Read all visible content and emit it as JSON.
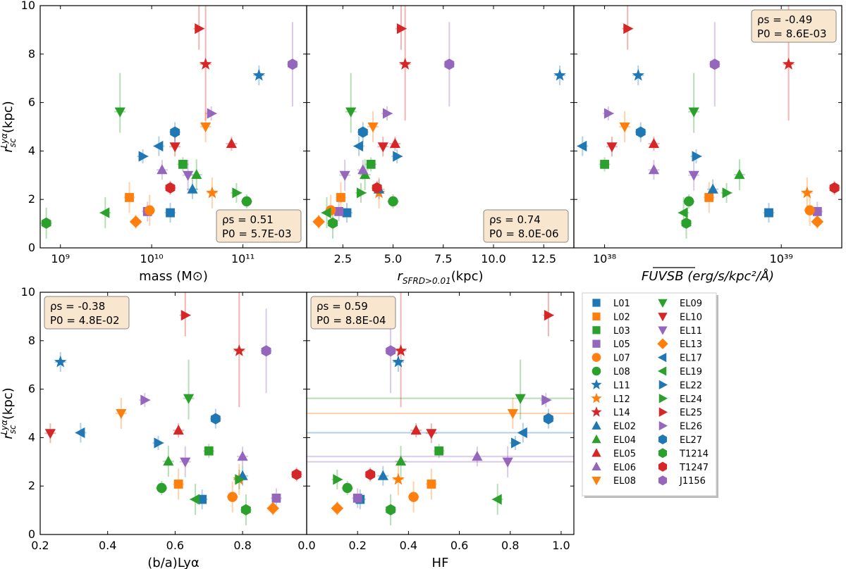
{
  "colors": {
    "blue": "#1f77b4",
    "orange": "#ff7f0e",
    "green": "#2ca02c",
    "red": "#d62728",
    "purple": "#9467bd",
    "statbox": "#f8e6cf"
  },
  "legend": [
    {
      "label": "L01",
      "color": "blue",
      "marker": "square"
    },
    {
      "label": "L02",
      "color": "orange",
      "marker": "square"
    },
    {
      "label": "L03",
      "color": "green",
      "marker": "square"
    },
    {
      "label": "L05",
      "color": "purple",
      "marker": "square"
    },
    {
      "label": "L07",
      "color": "orange",
      "marker": "circle"
    },
    {
      "label": "L08",
      "color": "green",
      "marker": "circle"
    },
    {
      "label": "L11",
      "color": "blue",
      "marker": "star"
    },
    {
      "label": "L12",
      "color": "orange",
      "marker": "star"
    },
    {
      "label": "L14",
      "color": "red",
      "marker": "star"
    },
    {
      "label": "EL02",
      "color": "blue",
      "marker": "tri-up"
    },
    {
      "label": "EL04",
      "color": "green",
      "marker": "tri-up"
    },
    {
      "label": "EL05",
      "color": "red",
      "marker": "tri-up"
    },
    {
      "label": "EL06",
      "color": "purple",
      "marker": "tri-up"
    },
    {
      "label": "EL08",
      "color": "orange",
      "marker": "tri-down"
    },
    {
      "label": "EL09",
      "color": "green",
      "marker": "tri-down"
    },
    {
      "label": "EL10",
      "color": "red",
      "marker": "tri-down"
    },
    {
      "label": "EL11",
      "color": "purple",
      "marker": "tri-down"
    },
    {
      "label": "EL13",
      "color": "orange",
      "marker": "diamond"
    },
    {
      "label": "EL17",
      "color": "blue",
      "marker": "tri-left"
    },
    {
      "label": "EL19",
      "color": "green",
      "marker": "tri-left"
    },
    {
      "label": "EL22",
      "color": "blue",
      "marker": "tri-right"
    },
    {
      "label": "EL24",
      "color": "green",
      "marker": "tri-right"
    },
    {
      "label": "EL25",
      "color": "red",
      "marker": "tri-right"
    },
    {
      "label": "EL26",
      "color": "purple",
      "marker": "tri-right"
    },
    {
      "label": "EL27",
      "color": "blue",
      "marker": "hexagon"
    },
    {
      "label": "T1214",
      "color": "green",
      "marker": "hexagon"
    },
    {
      "label": "T1247",
      "color": "red",
      "marker": "hexagon"
    },
    {
      "label": "J1156",
      "color": "purple",
      "marker": "hexagon"
    }
  ],
  "chart_data": [
    {
      "type": "scatter",
      "id": "p1",
      "xscale": "log",
      "xlabel": "mass (M⊙)",
      "ylabel": "r_sc^Lyα (kpc)",
      "xlim": [
        600000000.0,
        500000000000.0
      ],
      "ylim": [
        0,
        10
      ],
      "xticks": [
        {
          "v": 1000000000.0,
          "label": "10⁹"
        },
        {
          "v": 10000000000.0,
          "label": "10¹⁰"
        },
        {
          "v": 100000000000.0,
          "label": "10¹¹"
        }
      ],
      "yticks": [
        0,
        2,
        4,
        6,
        8,
        10
      ],
      "stats": {
        "rho_label": "ρs = 0.51",
        "p_label": "P0 = 5.7E-03",
        "position": "bottom-right"
      },
      "points": [
        {
          "label": "L01",
          "x": 16000000000.0,
          "y": 1.45
        },
        {
          "label": "L02",
          "x": 5700000000.0,
          "y": 2.08
        },
        {
          "label": "L03",
          "x": 22000000000.0,
          "y": 3.45
        },
        {
          "label": "L05",
          "x": 9000000000.0,
          "y": 1.5
        },
        {
          "label": "L07",
          "x": 9500000000.0,
          "y": 1.55
        },
        {
          "label": "L08",
          "x": 110000000000.0,
          "y": 1.92
        },
        {
          "label": "L11",
          "x": 150000000000.0,
          "y": 7.12
        },
        {
          "label": "L12",
          "x": 46000000000.0,
          "y": 2.27
        },
        {
          "label": "L14",
          "x": 39000000000.0,
          "y": 7.58
        },
        {
          "label": "EL02",
          "x": 28000000000.0,
          "y": 2.42
        },
        {
          "label": "EL04",
          "x": 31000000000.0,
          "y": 3.02
        },
        {
          "label": "EL05",
          "x": 75000000000.0,
          "y": 4.3
        },
        {
          "label": "EL06",
          "x": 13000000000.0,
          "y": 3.22
        },
        {
          "label": "EL08",
          "x": 39000000000.0,
          "y": 5.0
        },
        {
          "label": "EL09",
          "x": 4500000000.0,
          "y": 5.62
        },
        {
          "label": "EL10",
          "x": 18000000000.0,
          "y": 4.18
        },
        {
          "label": "EL11",
          "x": 25000000000.0,
          "y": 3.0
        },
        {
          "label": "EL13",
          "x": 6700000000.0,
          "y": 1.08
        },
        {
          "label": "EL17",
          "x": 12000000000.0,
          "y": 4.2
        },
        {
          "label": "EL19",
          "x": 3100000000.0,
          "y": 1.45
        },
        {
          "label": "EL22",
          "x": 8000000000.0,
          "y": 3.78
        },
        {
          "label": "EL24",
          "x": 85000000000.0,
          "y": 2.27
        },
        {
          "label": "EL25",
          "x": 33000000000.0,
          "y": 9.05
        },
        {
          "label": "EL26",
          "x": 45000000000.0,
          "y": 5.55
        },
        {
          "label": "EL27",
          "x": 18000000000.0,
          "y": 4.78
        },
        {
          "label": "T1214",
          "x": 700000000.0,
          "y": 1.02
        },
        {
          "label": "T1247",
          "x": 16000000000.0,
          "y": 2.48
        },
        {
          "label": "J1156",
          "x": 350000000000.0,
          "y": 7.58
        }
      ]
    },
    {
      "type": "scatter",
      "id": "p2",
      "xscale": "linear",
      "xlabel": "r_SFRD>0.01 (kpc)",
      "ylabel": "",
      "xlim": [
        0.7,
        14.0
      ],
      "ylim": [
        0,
        10
      ],
      "xticks": [
        {
          "v": 2.5,
          "label": "2.5"
        },
        {
          "v": 5.0,
          "label": "5.0"
        },
        {
          "v": 7.5,
          "label": "7.5"
        },
        {
          "v": 10.0,
          "label": "10.0"
        },
        {
          "v": 12.5,
          "label": "12.5"
        }
      ],
      "yticks": [
        0,
        2,
        4,
        6,
        8,
        10
      ],
      "stats": {
        "rho_label": "ρs = 0.74",
        "p_label": "P0 = 8.0E-06",
        "position": "bottom-right"
      },
      "points": [
        {
          "label": "L01",
          "x": 2.7,
          "y": 1.45
        },
        {
          "label": "L02",
          "x": 2.4,
          "y": 2.08
        },
        {
          "label": "L03",
          "x": 3.9,
          "y": 3.45
        },
        {
          "label": "L05",
          "x": 2.3,
          "y": 1.5
        },
        {
          "label": "L07",
          "x": 1.9,
          "y": 1.55
        },
        {
          "label": "L08",
          "x": 5.0,
          "y": 1.92
        },
        {
          "label": "L11",
          "x": 13.3,
          "y": 7.12
        },
        {
          "label": "L12",
          "x": 4.3,
          "y": 2.27
        },
        {
          "label": "L14",
          "x": 5.6,
          "y": 7.58
        },
        {
          "label": "EL02",
          "x": 4.3,
          "y": 2.42
        },
        {
          "label": "EL04",
          "x": 3.6,
          "y": 3.02
        },
        {
          "label": "EL05",
          "x": 5.1,
          "y": 4.3
        },
        {
          "label": "EL06",
          "x": 3.5,
          "y": 3.22
        },
        {
          "label": "EL08",
          "x": 4.0,
          "y": 5.0
        },
        {
          "label": "EL09",
          "x": 2.9,
          "y": 5.62
        },
        {
          "label": "EL10",
          "x": 4.5,
          "y": 4.18
        },
        {
          "label": "EL11",
          "x": 2.6,
          "y": 3.0
        },
        {
          "label": "EL13",
          "x": 1.3,
          "y": 1.08
        },
        {
          "label": "EL17",
          "x": 3.3,
          "y": 4.2
        },
        {
          "label": "EL19",
          "x": 1.7,
          "y": 1.45
        },
        {
          "label": "EL22",
          "x": 5.2,
          "y": 3.78
        },
        {
          "label": "EL24",
          "x": 3.4,
          "y": 2.27
        },
        {
          "label": "EL25",
          "x": 5.4,
          "y": 9.05
        },
        {
          "label": "EL26",
          "x": 4.7,
          "y": 5.55
        },
        {
          "label": "EL27",
          "x": 3.5,
          "y": 4.78
        },
        {
          "label": "T1214",
          "x": 2.0,
          "y": 1.02
        },
        {
          "label": "T1247",
          "x": 4.2,
          "y": 2.48
        },
        {
          "label": "J1156",
          "x": 7.8,
          "y": 7.58
        }
      ]
    },
    {
      "type": "scatter",
      "id": "p3",
      "xscale": "log",
      "xlabel": "FUV_SB (erg/s/kpc²/Å)",
      "ylabel": "",
      "xlim": [
        6.7e+37,
        2.2e+39
      ],
      "ylim": [
        0,
        10
      ],
      "xticks": [
        {
          "v": 1e+38,
          "label": "10³⁸"
        },
        {
          "v": 1e+39,
          "label": "10³⁹"
        }
      ],
      "yticks": [
        0,
        2,
        4,
        6,
        8,
        10
      ],
      "stats": {
        "rho_label": "ρs = -0.49",
        "p_label": "P0 = 8.6E-03",
        "position": "top-right"
      },
      "points": [
        {
          "label": "L01",
          "x": 8.5e+38,
          "y": 1.45
        },
        {
          "label": "L02",
          "x": 3.9e+38,
          "y": 2.08
        },
        {
          "label": "L03",
          "x": 1e+38,
          "y": 3.45
        },
        {
          "label": "L05",
          "x": 1.6e+39,
          "y": 1.5
        },
        {
          "label": "L07",
          "x": 1.45e+39,
          "y": 1.55
        },
        {
          "label": "L08",
          "x": 3e+38,
          "y": 1.92
        },
        {
          "label": "L11",
          "x": 1.55e+38,
          "y": 7.12
        },
        {
          "label": "L12",
          "x": 1.4e+39,
          "y": 2.27
        },
        {
          "label": "L14",
          "x": 1.1e+39,
          "y": 7.58
        },
        {
          "label": "EL02",
          "x": 4.1e+38,
          "y": 2.42
        },
        {
          "label": "EL04",
          "x": 5.8e+38,
          "y": 3.02
        },
        {
          "label": "EL05",
          "x": 1.9e+38,
          "y": 4.3
        },
        {
          "label": "EL06",
          "x": 1.9e+38,
          "y": 3.22
        },
        {
          "label": "EL08",
          "x": 1.3e+38,
          "y": 5.0
        },
        {
          "label": "EL09",
          "x": 3.2e+38,
          "y": 5.62
        },
        {
          "label": "EL10",
          "x": 1.1e+38,
          "y": 4.18
        },
        {
          "label": "EL11",
          "x": 3.2e+38,
          "y": 3.0
        },
        {
          "label": "EL13",
          "x": 1.6e+39,
          "y": 1.08
        },
        {
          "label": "EL17",
          "x": 7.5e+37,
          "y": 4.2
        },
        {
          "label": "EL19",
          "x": 2.8e+38,
          "y": 1.45
        },
        {
          "label": "EL22",
          "x": 3.3e+38,
          "y": 3.78
        },
        {
          "label": "EL24",
          "x": 4.9e+38,
          "y": 2.27
        },
        {
          "label": "EL25",
          "x": 1.35e+38,
          "y": 9.05
        },
        {
          "label": "EL26",
          "x": 1.05e+38,
          "y": 5.55
        },
        {
          "label": "EL27",
          "x": 1.6e+38,
          "y": 4.78
        },
        {
          "label": "T1214",
          "x": 2.9e+38,
          "y": 1.02
        },
        {
          "label": "T1247",
          "x": 2e+39,
          "y": 2.48
        },
        {
          "label": "J1156",
          "x": 4.2e+38,
          "y": 7.58
        }
      ]
    },
    {
      "type": "scatter",
      "id": "p4",
      "xscale": "linear",
      "xlabel": "(b/a)Lyα",
      "ylabel": "r_sc^Lyα (kpc)",
      "xlim": [
        0.2,
        0.99
      ],
      "ylim": [
        0,
        10
      ],
      "xticks": [
        {
          "v": 0.2,
          "label": "0.2"
        },
        {
          "v": 0.4,
          "label": "0.4"
        },
        {
          "v": 0.6,
          "label": "0.6"
        },
        {
          "v": 0.8,
          "label": "0.8"
        }
      ],
      "yticks": [
        0,
        2,
        4,
        6,
        8,
        10
      ],
      "stats": {
        "rho_label": "ρs = -0.38",
        "p_label": "P0 = 4.8E-02",
        "position": "top-left"
      },
      "points": [
        {
          "label": "L01",
          "x": 0.68,
          "y": 1.45
        },
        {
          "label": "L02",
          "x": 0.61,
          "y": 2.08
        },
        {
          "label": "L03",
          "x": 0.7,
          "y": 3.45
        },
        {
          "label": "L05",
          "x": 0.9,
          "y": 1.5
        },
        {
          "label": "L07",
          "x": 0.77,
          "y": 1.55
        },
        {
          "label": "L08",
          "x": 0.56,
          "y": 1.92
        },
        {
          "label": "L11",
          "x": 0.26,
          "y": 7.12
        },
        {
          "label": "L12",
          "x": 0.79,
          "y": 2.27
        },
        {
          "label": "L14",
          "x": 0.79,
          "y": 7.58
        },
        {
          "label": "EL02",
          "x": 0.8,
          "y": 2.42
        },
        {
          "label": "EL04",
          "x": 0.58,
          "y": 3.02
        },
        {
          "label": "EL05",
          "x": 0.61,
          "y": 4.3
        },
        {
          "label": "EL06",
          "x": 0.8,
          "y": 3.22
        },
        {
          "label": "EL08",
          "x": 0.44,
          "y": 5.0
        },
        {
          "label": "EL09",
          "x": 0.64,
          "y": 5.62
        },
        {
          "label": "EL10",
          "x": 0.23,
          "y": 4.18
        },
        {
          "label": "EL11",
          "x": 0.63,
          "y": 3.0
        },
        {
          "label": "EL13",
          "x": 0.89,
          "y": 1.08
        },
        {
          "label": "EL17",
          "x": 0.32,
          "y": 4.2
        },
        {
          "label": "EL19",
          "x": 0.66,
          "y": 1.45
        },
        {
          "label": "EL22",
          "x": 0.55,
          "y": 3.78
        },
        {
          "label": "EL24",
          "x": 0.79,
          "y": 2.27
        },
        {
          "label": "EL25",
          "x": 0.63,
          "y": 9.05
        },
        {
          "label": "EL26",
          "x": 0.51,
          "y": 5.55
        },
        {
          "label": "EL27",
          "x": 0.72,
          "y": 4.78
        },
        {
          "label": "T1214",
          "x": 0.81,
          "y": 1.02
        },
        {
          "label": "T1247",
          "x": 0.96,
          "y": 2.48
        },
        {
          "label": "J1156",
          "x": 0.87,
          "y": 7.58
        }
      ]
    },
    {
      "type": "scatter",
      "id": "p5",
      "xscale": "linear",
      "xlabel": "HF",
      "ylabel": "",
      "xlim": [
        0.0,
        1.05
      ],
      "ylim": [
        0,
        10
      ],
      "xticks": [
        {
          "v": 0.0,
          "label": "0.0"
        },
        {
          "v": 0.2,
          "label": "0.2"
        },
        {
          "v": 0.4,
          "label": "0.4"
        },
        {
          "v": 0.6,
          "label": "0.6"
        },
        {
          "v": 0.8,
          "label": "0.8"
        },
        {
          "v": 1.0,
          "label": "1.0"
        }
      ],
      "yticks": [
        0,
        2,
        4,
        6,
        8,
        10
      ],
      "stats": {
        "rho_label": "ρs = 0.59",
        "p_label": "P0 = 8.8E-04",
        "position": "top-left"
      },
      "points": [
        {
          "label": "L01",
          "x": 0.21,
          "y": 1.45
        },
        {
          "label": "L02",
          "x": 0.49,
          "y": 2.08
        },
        {
          "label": "L03",
          "x": 0.52,
          "y": 3.45
        },
        {
          "label": "L05",
          "x": 0.2,
          "y": 1.5
        },
        {
          "label": "L07",
          "x": 0.42,
          "y": 1.55
        },
        {
          "label": "L08",
          "x": 0.16,
          "y": 1.92
        },
        {
          "label": "L11",
          "x": 0.36,
          "y": 7.12
        },
        {
          "label": "L12",
          "x": 0.36,
          "y": 2.27
        },
        {
          "label": "L14",
          "x": 0.37,
          "y": 7.58
        },
        {
          "label": "EL02",
          "x": 0.3,
          "y": 2.42
        },
        {
          "label": "EL04",
          "x": 0.37,
          "y": 3.02
        },
        {
          "label": "EL05",
          "x": 0.43,
          "y": 4.3
        },
        {
          "label": "EL06",
          "x": 0.67,
          "y": 3.22
        },
        {
          "label": "EL08",
          "x": 0.81,
          "y": 5.0
        },
        {
          "label": "EL09",
          "x": 0.84,
          "y": 5.62
        },
        {
          "label": "EL10",
          "x": 0.49,
          "y": 4.18
        },
        {
          "label": "EL11",
          "x": 0.79,
          "y": 3.0
        },
        {
          "label": "EL13",
          "x": 0.12,
          "y": 1.08
        },
        {
          "label": "EL17",
          "x": 0.85,
          "y": 4.2
        },
        {
          "label": "EL19",
          "x": 0.75,
          "y": 1.45
        },
        {
          "label": "EL22",
          "x": 0.82,
          "y": 3.78
        },
        {
          "label": "EL24",
          "x": 0.12,
          "y": 2.27
        },
        {
          "label": "EL25",
          "x": 0.95,
          "y": 9.05
        },
        {
          "label": "EL26",
          "x": 0.94,
          "y": 5.55
        },
        {
          "label": "EL27",
          "x": 0.95,
          "y": 4.78
        },
        {
          "label": "T1214",
          "x": 0.33,
          "y": 1.02
        },
        {
          "label": "T1247",
          "x": 0.25,
          "y": 2.48
        },
        {
          "label": "J1156",
          "x": 0.33,
          "y": 7.58
        }
      ]
    }
  ]
}
